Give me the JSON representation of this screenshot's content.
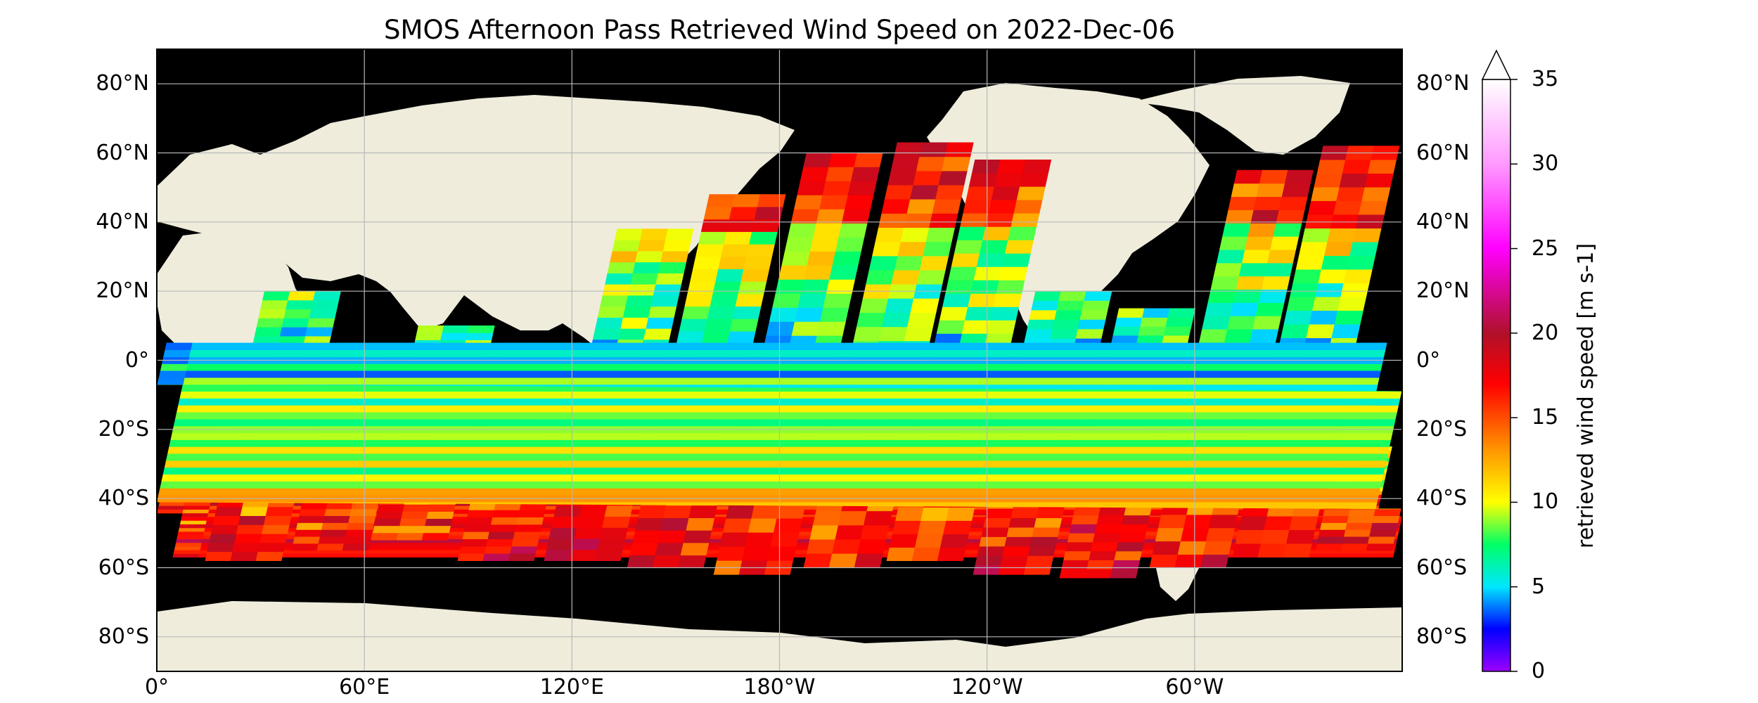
{
  "map": {
    "title": "SMOS Afternoon Pass Retrieved Wind Speed on 2022-Dec-06",
    "projection": "PlateCarree",
    "ocean_background_color": "#000000",
    "land_color": "#efecdc",
    "gridlines": true,
    "lat_ticks": [
      "80°N",
      "60°N",
      "40°N",
      "20°N",
      "0°",
      "20°S",
      "40°S",
      "60°S",
      "80°S"
    ],
    "lon_ticks": [
      "0°",
      "60°E",
      "120°E",
      "180°W",
      "120°W",
      "60°W"
    ],
    "swath_pattern": "afternoon (ascending) satellite swaths tilted north-eastward across the oceans",
    "colorbar": {
      "label": "retrieved wind speed [m s-1]",
      "ticks": [
        "0",
        "5",
        "10",
        "15",
        "20",
        "25",
        "30",
        "35"
      ],
      "min": 0,
      "max": 35,
      "extend": "max",
      "colormap": [
        {
          "value": 0,
          "color": "#9b00ff"
        },
        {
          "value": 2.5,
          "color": "#0000ff"
        },
        {
          "value": 5,
          "color": "#00e6ff"
        },
        {
          "value": 7.5,
          "color": "#00ff66"
        },
        {
          "value": 10,
          "color": "#ffff00"
        },
        {
          "value": 13,
          "color": "#ff9900"
        },
        {
          "value": 17,
          "color": "#ff0000"
        },
        {
          "value": 20,
          "color": "#b0102a"
        },
        {
          "value": 25,
          "color": "#ff00ff"
        },
        {
          "value": 30,
          "color": "#ff99ff"
        },
        {
          "value": 35,
          "color": "#ffffff"
        }
      ]
    }
  }
}
